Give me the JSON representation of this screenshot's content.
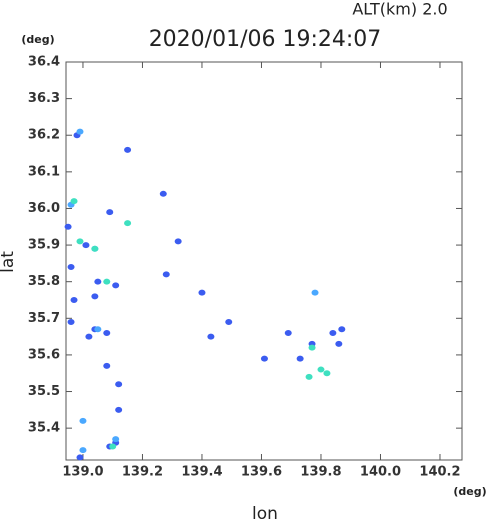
{
  "chart_data": {
    "type": "scatter",
    "title": "2020/01/06 19:24:07",
    "subtitle": "ALT(km) 2.0",
    "x_label": "lon",
    "y_label": "lat",
    "x_unit": "(deg)",
    "y_unit": "(deg)",
    "xlim": [
      138.943,
      140.274
    ],
    "ylim": [
      35.313,
      36.4
    ],
    "xticks": [
      {
        "value": 139,
        "label": "139.0"
      },
      139.2,
      139.4,
      139.6,
      139.8,
      {
        "value": 140,
        "label": "140.0"
      },
      140.2
    ],
    "yticks": [
      35.4,
      35.5,
      35.6,
      35.7,
      35.8,
      35.9,
      {
        "value": 36,
        "label": "36.0"
      },
      36.1,
      36.2,
      36.3,
      36.4
    ],
    "series": [
      {
        "color": "#3b5cf0",
        "x": [
          138.98,
          139.15,
          138.95,
          139.01,
          138.96,
          138.97,
          139.04,
          138.96,
          139.04,
          139.08,
          139.02,
          139.08,
          139.12,
          139.12,
          139.09,
          139.11,
          139.28,
          139.32,
          139.43,
          139.49,
          139.4,
          139.84,
          139.87,
          139.86,
          139.77,
          139.73,
          139.69,
          139.61,
          139.09,
          139.05,
          139.11,
          138.99,
          139.27
        ],
        "values": [
          36.2,
          36.16,
          35.95,
          35.9,
          35.84,
          35.75,
          35.76,
          35.69,
          35.67,
          35.66,
          35.65,
          35.57,
          35.52,
          35.45,
          35.35,
          35.36,
          35.82,
          35.91,
          35.65,
          35.69,
          35.77,
          35.66,
          35.67,
          35.63,
          35.63,
          35.59,
          35.66,
          35.59,
          35.99,
          35.8,
          35.79,
          35.32,
          36.04
        ]
      },
      {
        "color": "#4aa8ff",
        "x": [
          138.99,
          138.96,
          139.04,
          139.05,
          139.0,
          139.11,
          139.0,
          139.78
        ],
        "values": [
          36.21,
          36.01,
          35.89,
          35.67,
          35.42,
          35.37,
          35.34,
          35.77
        ]
      },
      {
        "color": "#3ee0c0",
        "x": [
          138.97,
          138.99,
          139.08,
          139.15,
          139.04,
          139.8,
          139.76,
          139.82,
          139.1,
          139.77
        ],
        "values": [
          36.02,
          35.91,
          35.8,
          35.96,
          35.89,
          35.56,
          35.54,
          35.55,
          35.35,
          35.62
        ]
      }
    ]
  }
}
